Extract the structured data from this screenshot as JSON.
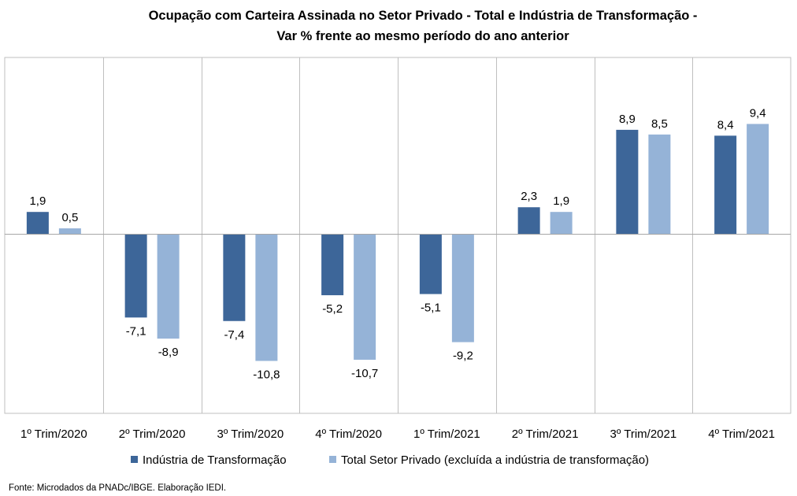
{
  "chart_data": {
    "type": "bar",
    "title_lines": [
      "Ocupação com Carteira Assinada no Setor Privado - Total e Indústria de Transformação -",
      "Var % frente ao mesmo período do ano anterior"
    ],
    "categories": [
      "1º Trim/2020",
      "2º Trim/2020",
      "3º Trim/2020",
      "4º Trim/2020",
      "1º Trim/2021",
      "2º Trim/2021",
      "3º Trim/2021",
      "4º Trim/2021"
    ],
    "series": [
      {
        "name": "Indústria de Transformação",
        "color": "#3d6699",
        "values": [
          1.9,
          -7.1,
          -7.4,
          -5.2,
          -5.1,
          2.3,
          8.9,
          8.4
        ],
        "labels": [
          "1,9",
          "-7,1",
          "-7,4",
          "-5,2",
          "-5,1",
          "2,3",
          "8,9",
          "8,4"
        ]
      },
      {
        "name": "Total Setor Privado (excluída a indústria de transformação)",
        "color": "#95b3d7",
        "values": [
          0.5,
          -8.9,
          -10.8,
          -10.7,
          -9.2,
          1.9,
          8.5,
          9.4
        ],
        "labels": [
          "0,5",
          "-8,9",
          "-10,8",
          "-10,7",
          "-9,2",
          "1,9",
          "8,5",
          "9,4"
        ]
      }
    ],
    "ylim": [
      -15,
      15
    ],
    "legend_position": "bottom",
    "source": "Fonte: Microdados da PNADc/IBGE. Elaboração IEDI."
  }
}
